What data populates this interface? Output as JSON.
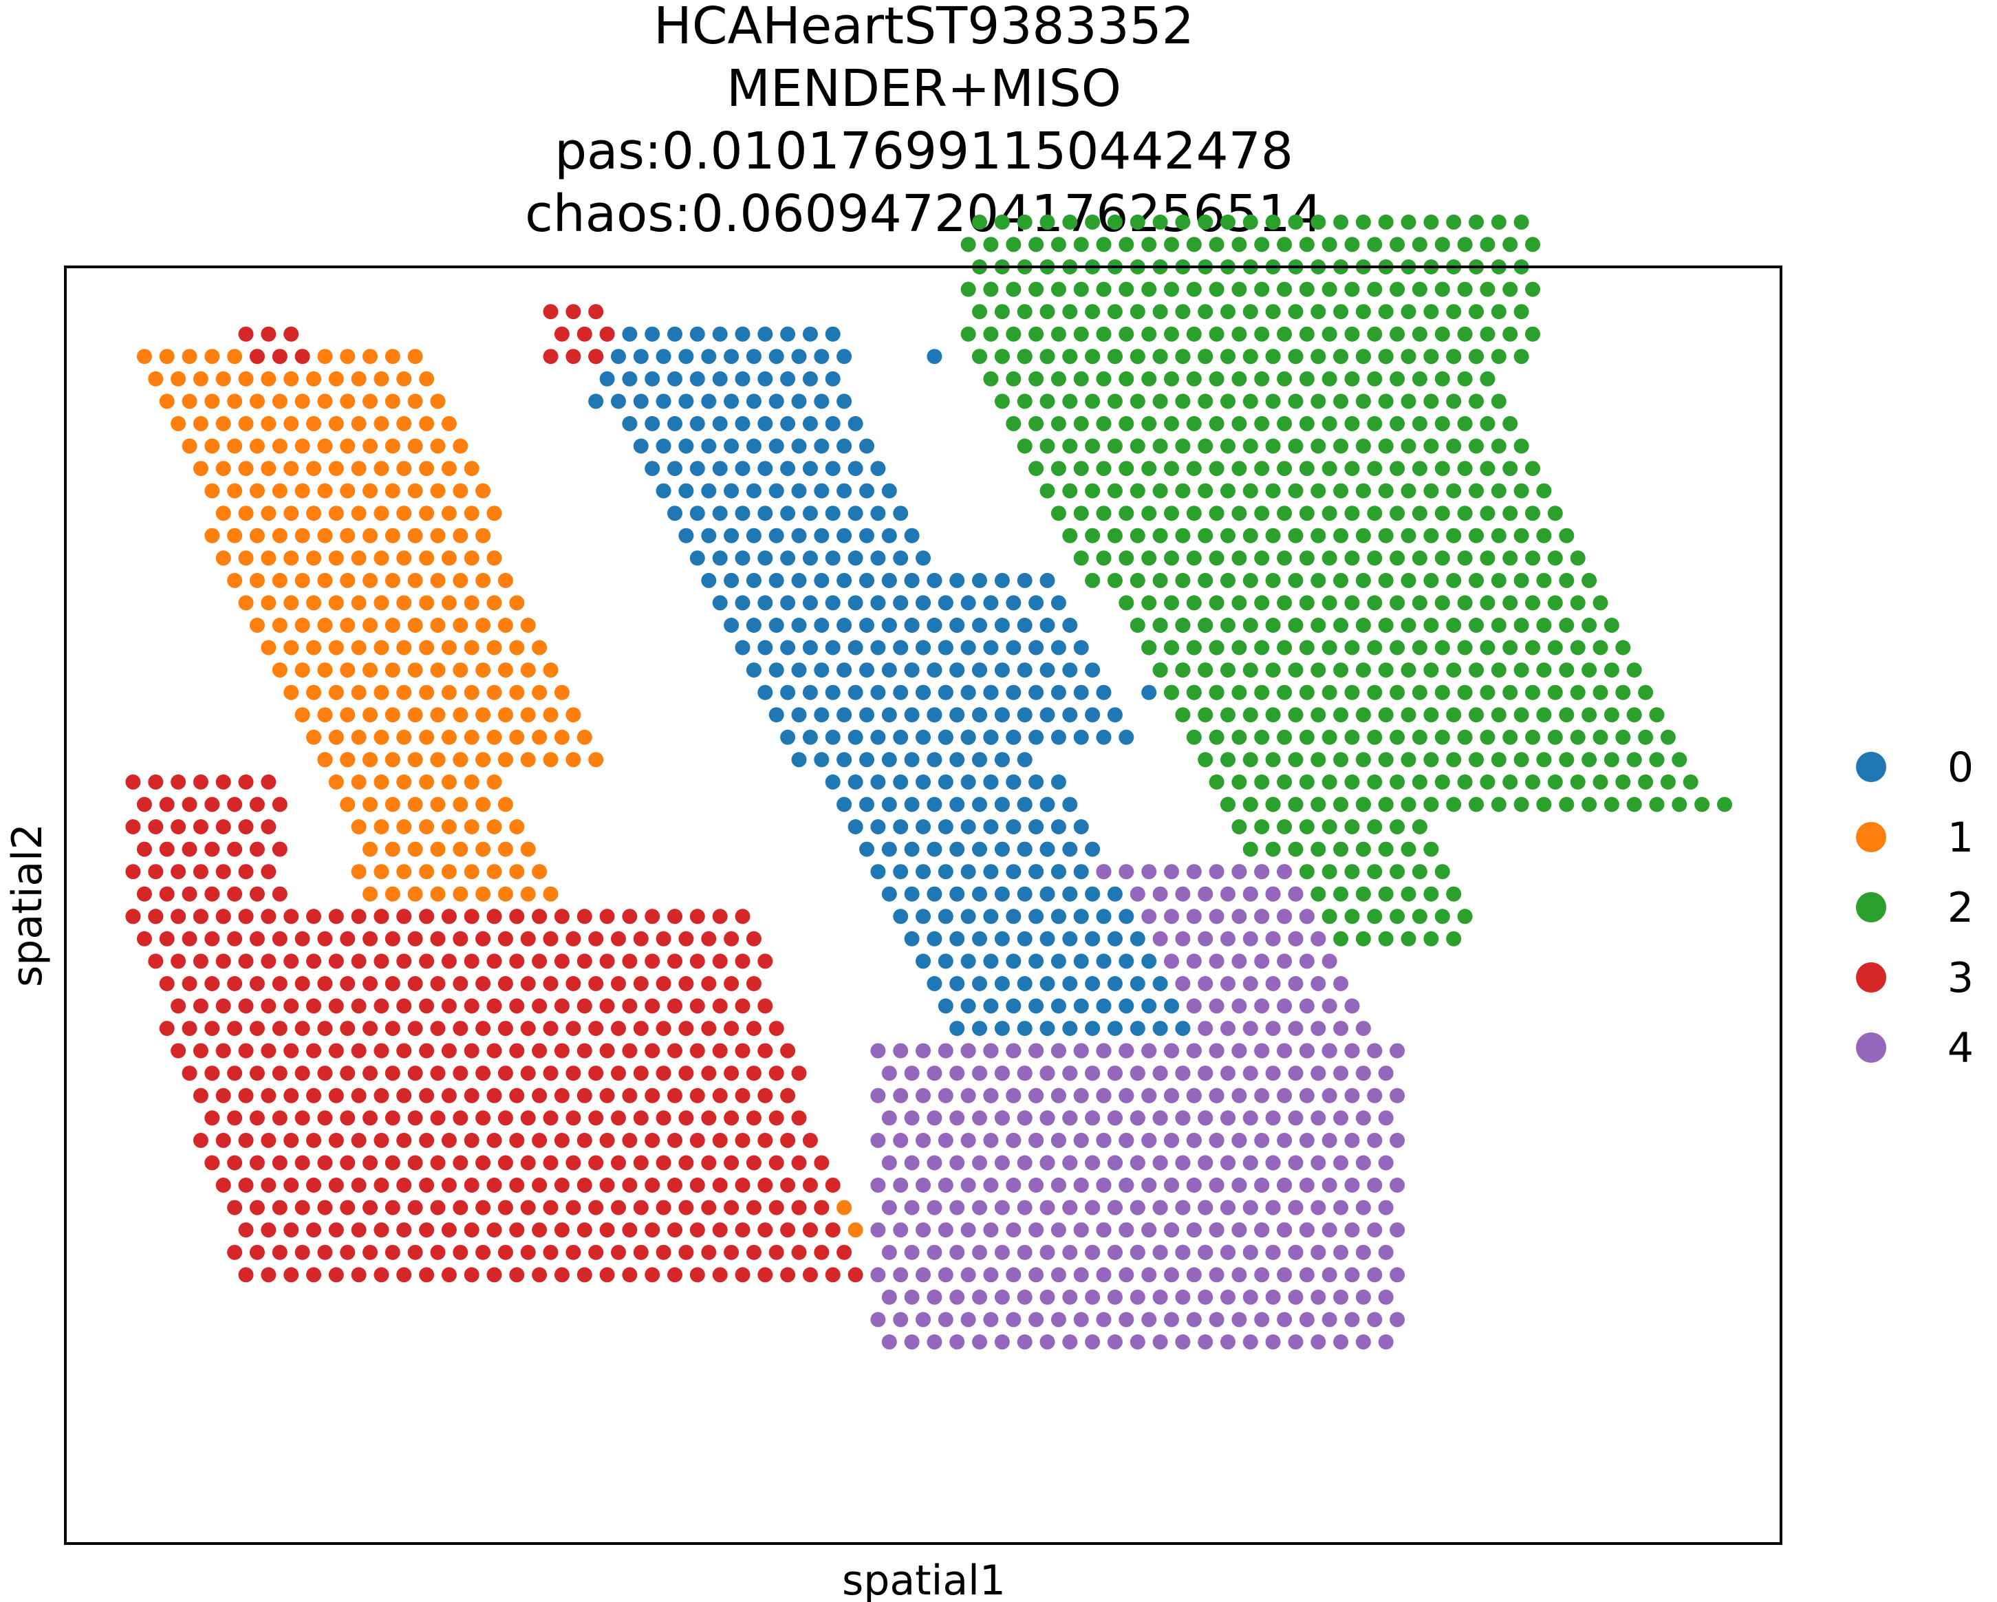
{
  "chart_data": {
    "type": "scatter",
    "title_lines": [
      "HCAHeartST9383352",
      "MENDER+MISO",
      "pas:0.010176991150442478",
      "chaos:0.060947204176256514"
    ],
    "xlabel": "spatial1",
    "ylabel": "spatial2",
    "xticks": "none",
    "yticks": "none",
    "grid": false,
    "legend_placement": "right-center-outside",
    "grid_spacing": {
      "dx": 1,
      "dy": 1,
      "row_offset": 0.5
    },
    "xlim": [
      -3,
      73
    ],
    "ylim": [
      -3,
      54
    ],
    "point_style": "spot",
    "series": [
      {
        "name": "0",
        "color": "#1f77b4",
        "regions": [
          {
            "from_row": 0,
            "to_row": 2,
            "x_start": 20.5,
            "x_end": 31.5,
            "slope": 0.0
          },
          {
            "from_row": 1,
            "to_row": 1,
            "x_start": 35.5,
            "x_end": 35.5,
            "slope": 0.0
          },
          {
            "from_row": 3,
            "to_row": 41,
            "x_start": 20.5,
            "x_end": 31.5,
            "slope": 0.56
          },
          {
            "from_row": 11,
            "to_row": 18,
            "x_start": 32.0,
            "x_end": 41.0,
            "slope": 0.56
          },
          {
            "from_row": 18,
            "to_row": 27,
            "x_start": 36.0,
            "x_end": 38.0,
            "slope": 0.62
          },
          {
            "from_row": 13,
            "to_row": 16,
            "x_start": 45.0,
            "x_end": 48.0,
            "slope": 0.0
          }
        ]
      },
      {
        "name": "1",
        "color": "#ff7f0e",
        "regions": [
          {
            "from_row": 1,
            "to_row": 19,
            "x_start": 0.0,
            "x_end": 13.0,
            "slope": 0.43
          },
          {
            "from_row": 19,
            "to_row": 27,
            "x_start": 8.0,
            "x_end": 16.5,
            "slope": 0.38
          },
          {
            "from_row": 39,
            "to_row": 40,
            "x_start": 29.5,
            "x_end": 32.0,
            "slope": 0.0
          }
        ]
      },
      {
        "name": "2",
        "color": "#2ca02c",
        "regions": [
          {
            "from_row": -5,
            "to_row": 1,
            "x_start": 37.0,
            "x_end": 62.0,
            "slope": 0.0
          },
          {
            "from_row": 1,
            "to_row": 21,
            "x_start": 37.0,
            "x_end": 59.5,
            "slope": 0.55
          },
          {
            "from_row": 21,
            "to_row": 27,
            "x_start": 48.0,
            "x_end": 57.5,
            "slope": 0.3
          },
          {
            "from_row": 32,
            "to_row": 33,
            "x_start": 52.0,
            "x_end": 53.0,
            "slope": 0.0
          }
        ]
      },
      {
        "name": "3",
        "color": "#d62728",
        "regions": [
          {
            "from_row": 0,
            "to_row": 1,
            "x_start": 5.0,
            "x_end": 7.5,
            "slope": 0.0
          },
          {
            "from_row": -1,
            "to_row": 1,
            "x_start": 18.5,
            "x_end": 21.0,
            "slope": 0.0
          },
          {
            "from_row": 20,
            "to_row": 26,
            "x_start": 0.0,
            "x_end": 6.5,
            "slope": 0.0
          },
          {
            "from_row": 26,
            "to_row": 42,
            "x_start": 0.0,
            "x_end": 27.5,
            "slope": 0.3
          }
        ]
      },
      {
        "name": "4",
        "color": "#9467bd",
        "regions": [
          {
            "from_row": 0,
            "to_row": 0,
            "x_start": 13.5,
            "x_end": 13.5,
            "slope": 0.0
          },
          {
            "from_row": 24,
            "to_row": 32,
            "x_start": 43.0,
            "x_end": 51.0,
            "slope": 0.6
          },
          {
            "from_row": 32,
            "to_row": 45,
            "x_start": 33.0,
            "x_end": 56.0,
            "slope": 0.0
          }
        ]
      }
    ]
  }
}
